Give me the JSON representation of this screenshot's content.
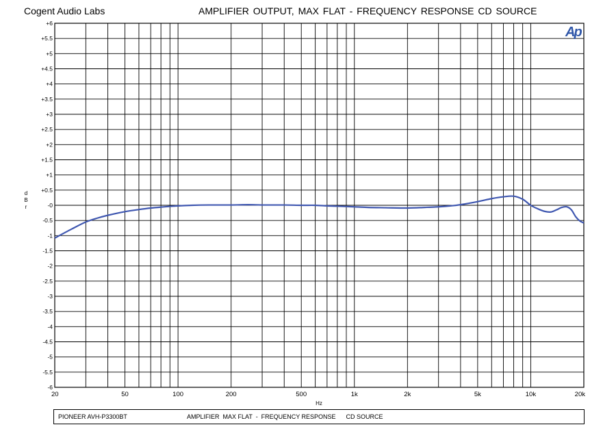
{
  "header": {
    "brand": "Cogent Audio Labs",
    "title": "AMPLIFIER OUTPUT,  MAX FLAT  -  FREQUENCY RESPONSE   CD SOURCE"
  },
  "logo": {
    "text": "Ap",
    "color": "#2f56a8"
  },
  "footer": {
    "model": "PIONEER AVH-P3300BT",
    "description": "AMPLIFIER  MAX FLAT  -  FREQUENCY RESPONSE      CD SOURCE"
  },
  "chart_data": {
    "type": "line",
    "title": "AMPLIFIER OUTPUT,  MAX FLAT  -  FREQUENCY RESPONSE   CD SOURCE",
    "xlabel": "Hz",
    "ylabel": "d B r",
    "xscale": "log",
    "xlim": [
      20,
      20000
    ],
    "ylim": [
      -6,
      6
    ],
    "grid": true,
    "line_color": "#3f57b0",
    "xticks": [
      {
        "value": 20,
        "label": "20"
      },
      {
        "value": 50,
        "label": "50"
      },
      {
        "value": 100,
        "label": "100"
      },
      {
        "value": 200,
        "label": "200"
      },
      {
        "value": 500,
        "label": "500"
      },
      {
        "value": 1000,
        "label": "1k"
      },
      {
        "value": 2000,
        "label": "2k"
      },
      {
        "value": 5000,
        "label": "5k"
      },
      {
        "value": 10000,
        "label": "10k"
      },
      {
        "value": 20000,
        "label": "20k"
      }
    ],
    "yticks": [
      {
        "value": 6,
        "label": "+6"
      },
      {
        "value": 5.5,
        "label": "+5.5"
      },
      {
        "value": 5,
        "label": "+5"
      },
      {
        "value": 4.5,
        "label": "+4.5"
      },
      {
        "value": 4,
        "label": "+4"
      },
      {
        "value": 3.5,
        "label": "+3.5"
      },
      {
        "value": 3,
        "label": "+3"
      },
      {
        "value": 2.5,
        "label": "+2.5"
      },
      {
        "value": 2,
        "label": "+2"
      },
      {
        "value": 1.5,
        "label": "+1.5"
      },
      {
        "value": 1,
        "label": "+1"
      },
      {
        "value": 0.5,
        "label": "+0.5"
      },
      {
        "value": 0,
        "label": "-0"
      },
      {
        "value": -0.5,
        "label": "-0.5"
      },
      {
        "value": -1,
        "label": "-1"
      },
      {
        "value": -1.5,
        "label": "-1.5"
      },
      {
        "value": -2,
        "label": "-2"
      },
      {
        "value": -2.5,
        "label": "-2.5"
      },
      {
        "value": -3,
        "label": "-3"
      },
      {
        "value": -3.5,
        "label": "-3.5"
      },
      {
        "value": -4,
        "label": "-4"
      },
      {
        "value": -4.5,
        "label": "-4.5"
      },
      {
        "value": -5,
        "label": "-5"
      },
      {
        "value": -5.5,
        "label": "-5.5"
      },
      {
        "value": -6,
        "label": "-6"
      }
    ],
    "series": [
      {
        "x": [
          20,
          25,
          30,
          35,
          40,
          50,
          60,
          70,
          80,
          100,
          120,
          150,
          200,
          250,
          300,
          400,
          500,
          600,
          700,
          800,
          1000,
          1200,
          1500,
          2000,
          2500,
          3000,
          3500,
          4000,
          5000,
          6000,
          7000,
          8000,
          9000,
          10000,
          11000,
          12000,
          13000,
          14000,
          15000,
          16000,
          17000,
          18000,
          19000,
          20000
        ],
        "y": [
          -1.08,
          -0.78,
          -0.55,
          -0.42,
          -0.33,
          -0.21,
          -0.14,
          -0.09,
          -0.06,
          -0.02,
          0.0,
          0.01,
          0.01,
          0.02,
          0.01,
          0.01,
          0.0,
          0.0,
          -0.02,
          -0.03,
          -0.05,
          -0.07,
          -0.08,
          -0.09,
          -0.07,
          -0.05,
          -0.02,
          0.02,
          0.12,
          0.22,
          0.28,
          0.3,
          0.2,
          0.0,
          -0.12,
          -0.2,
          -0.22,
          -0.15,
          -0.07,
          -0.05,
          -0.15,
          -0.38,
          -0.52,
          -0.58
        ]
      }
    ]
  }
}
